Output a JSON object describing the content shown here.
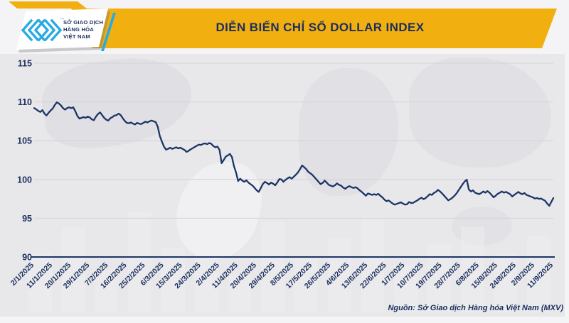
{
  "header": {
    "title": "DIỄN BIẾN CHỈ SỐ DOLLAR INDEX",
    "logo": {
      "line1": "SỞ GIAO DỊCH",
      "line2": "HÀNG HÓA",
      "line3": "VIỆT NAM",
      "trademark": "™"
    }
  },
  "footer": {
    "source": "Nguồn: Sở Giao dịch Hàng hóa Việt Nam (MXV)"
  },
  "colors": {
    "banner_yellow": "#F2AF10",
    "navy_text": "#1B2F5E",
    "line_navy": "#1C3566",
    "cyan_accent": "#29ABE2",
    "gridline": "#d3d3d7",
    "panel_bg": "#e8e8ea"
  },
  "chart_data": {
    "type": "line",
    "title": "DIỄN BIẾN CHỈ SỐ DOLLAR INDEX",
    "xlabel": "",
    "ylabel": "",
    "ylim": [
      90,
      115
    ],
    "y_ticks": [
      90,
      95,
      100,
      105,
      110,
      115
    ],
    "grid": true,
    "legend": "none",
    "x_tick_every": 9,
    "x_tick_labels": [
      "2/1/2025",
      "11/1/2025",
      "20/1/2025",
      "29/1/2025",
      "7/2/2025",
      "16/2/2025",
      "25/2/2025",
      "6/3/2025",
      "15/3/2025",
      "24/3/2025",
      "2/4/2025",
      "11/4/2025",
      "20/4/2025",
      "29/4/2025",
      "8/5/2025",
      "17/5/2025",
      "26/5/2025",
      "4/6/2025",
      "13/6/2025",
      "22/6/2025",
      "1/7/2025",
      "10/7/2025",
      "19/7/2025",
      "28/7/2025",
      "6/8/2025",
      "15/8/2025",
      "24/8/2025",
      "2/9/2025",
      "11/9/2025"
    ],
    "series": [
      {
        "name": "Dollar Index",
        "values": [
          109.2,
          109.05,
          108.85,
          108.7,
          108.95,
          108.5,
          108.25,
          108.6,
          108.9,
          109.15,
          109.6,
          109.95,
          109.8,
          109.55,
          109.2,
          109.0,
          109.2,
          109.3,
          109.2,
          109.3,
          108.8,
          108.2,
          107.85,
          107.95,
          108.05,
          107.95,
          108.1,
          108.0,
          107.75,
          107.65,
          108.1,
          108.45,
          108.65,
          108.3,
          107.95,
          107.7,
          107.6,
          107.9,
          108.05,
          108.25,
          108.3,
          108.5,
          108.3,
          107.9,
          107.55,
          107.3,
          107.25,
          107.35,
          107.2,
          107.1,
          107.3,
          107.2,
          107.15,
          107.3,
          107.45,
          107.35,
          107.5,
          107.6,
          107.5,
          107.4,
          106.8,
          105.6,
          104.9,
          104.25,
          103.85,
          103.95,
          104.1,
          103.95,
          104.05,
          104.15,
          104.0,
          104.1,
          103.95,
          103.8,
          103.55,
          103.7,
          103.9,
          104.05,
          104.2,
          104.35,
          104.5,
          104.45,
          104.6,
          104.65,
          104.55,
          104.7,
          104.6,
          104.3,
          104.15,
          104.25,
          103.8,
          102.1,
          102.5,
          102.95,
          103.1,
          103.3,
          102.9,
          101.7,
          100.9,
          99.8,
          100.1,
          99.85,
          99.7,
          99.9,
          99.6,
          99.4,
          99.2,
          98.9,
          98.6,
          98.4,
          98.9,
          99.4,
          99.7,
          99.55,
          99.35,
          99.6,
          99.45,
          99.25,
          99.6,
          100.05,
          100.0,
          99.7,
          99.95,
          100.15,
          100.3,
          100.1,
          100.35,
          100.6,
          100.9,
          101.3,
          101.8,
          101.6,
          101.35,
          101.0,
          100.8,
          100.6,
          100.3,
          100.0,
          99.7,
          99.4,
          99.55,
          99.85,
          99.6,
          99.3,
          99.2,
          99.1,
          99.25,
          99.5,
          99.3,
          99.2,
          98.95,
          98.8,
          99.0,
          99.15,
          99.0,
          98.9,
          99.0,
          98.85,
          98.6,
          98.4,
          98.15,
          97.9,
          98.2,
          98.1,
          98.0,
          98.1,
          98.0,
          98.15,
          97.9,
          97.7,
          97.4,
          97.2,
          97.3,
          97.1,
          96.9,
          96.75,
          96.85,
          96.95,
          97.05,
          96.9,
          96.75,
          96.8,
          97.1,
          96.95,
          97.0,
          97.15,
          97.3,
          97.5,
          97.65,
          97.45,
          97.6,
          97.85,
          98.1,
          98.0,
          98.25,
          98.4,
          98.65,
          98.45,
          98.2,
          97.9,
          97.6,
          97.3,
          97.45,
          97.65,
          97.9,
          98.2,
          98.6,
          99.0,
          99.4,
          99.75,
          99.97,
          98.7,
          98.45,
          98.6,
          98.3,
          98.2,
          98.1,
          98.25,
          98.45,
          98.3,
          98.5,
          98.3,
          98.0,
          97.7,
          97.9,
          98.15,
          98.3,
          98.45,
          98.3,
          98.4,
          98.25,
          98.1,
          97.8,
          98.0,
          98.2,
          98.4,
          98.2,
          98.1,
          98.25,
          98.0,
          97.9,
          97.8,
          97.7,
          97.55,
          97.6,
          97.5,
          97.55,
          97.4,
          97.25,
          96.9,
          96.6,
          97.1,
          97.6
        ]
      }
    ]
  }
}
